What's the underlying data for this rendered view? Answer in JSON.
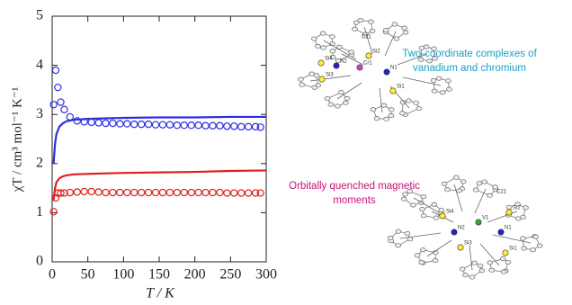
{
  "chart_data": {
    "type": "line",
    "x_label": "T / K",
    "y_label": "χT / cm³ mol⁻¹ K⁻¹",
    "xlim": [
      0,
      300
    ],
    "xticks": [
      0,
      50,
      100,
      150,
      200,
      250,
      300
    ],
    "ylim": [
      0,
      5
    ],
    "yticks": [
      0,
      1,
      2,
      3,
      4,
      5
    ],
    "series": [
      {
        "mode": "markers",
        "color": "#2d2de6",
        "x": [
          2,
          5,
          8,
          12,
          17,
          25,
          35,
          45,
          55,
          65,
          75,
          85,
          95,
          105,
          115,
          125,
          135,
          145,
          155,
          165,
          175,
          185,
          195,
          205,
          215,
          225,
          235,
          245,
          255,
          265,
          275,
          285,
          292
        ],
        "values": [
          3.2,
          3.9,
          3.55,
          3.25,
          3.1,
          2.95,
          2.87,
          2.85,
          2.84,
          2.83,
          2.82,
          2.82,
          2.81,
          2.81,
          2.8,
          2.8,
          2.8,
          2.79,
          2.79,
          2.79,
          2.78,
          2.78,
          2.78,
          2.78,
          2.77,
          2.77,
          2.77,
          2.76,
          2.76,
          2.75,
          2.75,
          2.75,
          2.74
        ]
      },
      {
        "mode": "markers",
        "color": "#e02020",
        "x": [
          2,
          5,
          8,
          12,
          17,
          25,
          35,
          45,
          55,
          65,
          75,
          85,
          95,
          105,
          115,
          125,
          135,
          145,
          155,
          165,
          175,
          185,
          195,
          205,
          215,
          225,
          235,
          245,
          255,
          265,
          275,
          285,
          292
        ],
        "values": [
          1.02,
          1.3,
          1.4,
          1.4,
          1.4,
          1.41,
          1.42,
          1.43,
          1.43,
          1.42,
          1.41,
          1.41,
          1.41,
          1.41,
          1.41,
          1.41,
          1.41,
          1.41,
          1.41,
          1.41,
          1.41,
          1.41,
          1.41,
          1.41,
          1.41,
          1.41,
          1.41,
          1.4,
          1.4,
          1.4,
          1.4,
          1.4,
          1.4
        ]
      },
      {
        "mode": "line",
        "color": "#2d2de6",
        "x": [
          2,
          4,
          6,
          10,
          15,
          20,
          30,
          50,
          100,
          150,
          200,
          250,
          300
        ],
        "values": [
          2.0,
          2.4,
          2.6,
          2.75,
          2.82,
          2.86,
          2.89,
          2.91,
          2.93,
          2.94,
          2.94,
          2.95,
          2.95
        ]
      },
      {
        "mode": "line",
        "color": "#e02020",
        "x": [
          2,
          4,
          6,
          10,
          15,
          20,
          30,
          50,
          100,
          150,
          200,
          250,
          300
        ],
        "values": [
          1.25,
          1.5,
          1.62,
          1.7,
          1.74,
          1.76,
          1.78,
          1.79,
          1.81,
          1.82,
          1.83,
          1.85,
          1.86
        ]
      }
    ],
    "annotations": [
      {
        "lines": [
          "Two-coordinate complexes of",
          "vanadium and chromium"
        ],
        "color": "#1a9fc8"
      },
      {
        "lines": [
          "Orbitally quenched magnetic",
          "moments"
        ],
        "color": "#c8127a"
      }
    ],
    "structures": [
      {
        "atoms": [
          "C21",
          "Si2",
          "Cr1",
          "Si4",
          "N2",
          "N1",
          "Si3",
          "Si1"
        ]
      },
      {
        "atoms": [
          "C21",
          "Si4",
          "V1",
          "Si2",
          "N2",
          "N1",
          "Si3",
          "Si1"
        ]
      }
    ]
  }
}
